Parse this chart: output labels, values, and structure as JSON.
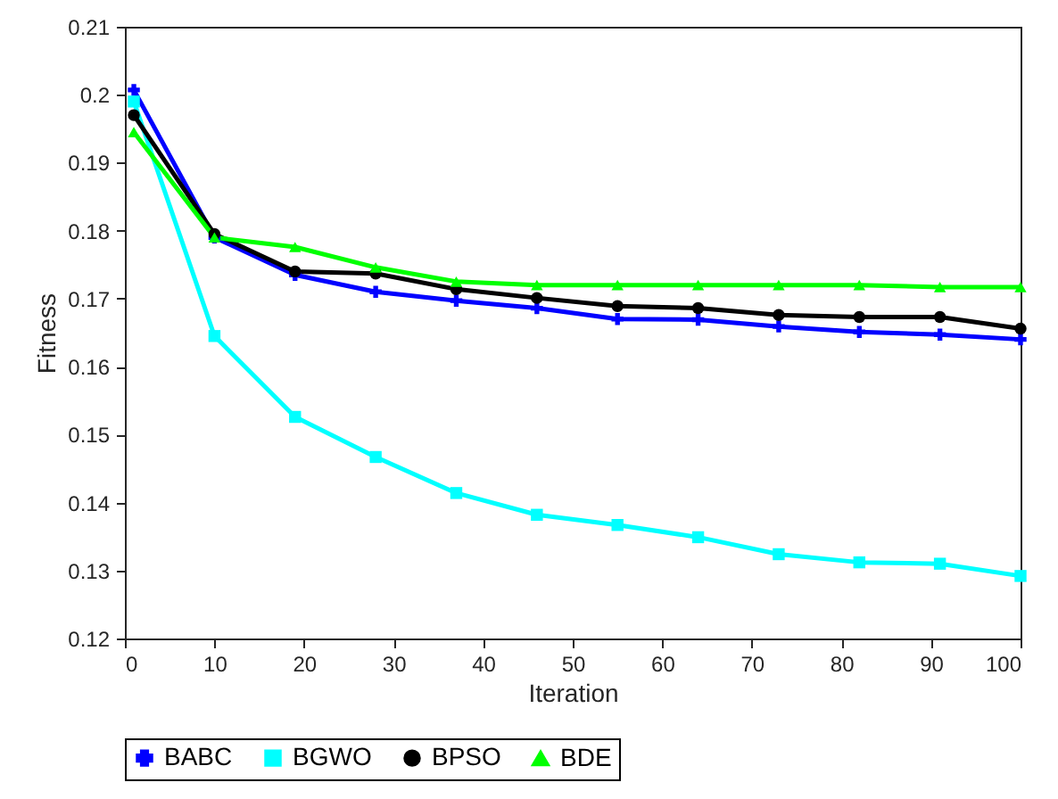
{
  "chart_data": {
    "type": "line",
    "xlabel": "Iteration",
    "ylabel": "Fitness",
    "x": [
      1,
      10,
      19,
      28,
      37,
      46,
      55,
      64,
      73,
      82,
      91,
      100
    ],
    "series": [
      {
        "name": "BABC",
        "color": "#0000ff",
        "marker": "cross",
        "values": [
          0.2007,
          0.179,
          0.1735,
          0.171,
          0.1697,
          0.1686,
          0.167,
          0.1669,
          0.1659,
          0.1651,
          0.1647,
          0.164
        ]
      },
      {
        "name": "BGWO",
        "color": "#00ffff",
        "marker": "square",
        "values": [
          0.199,
          0.1645,
          0.1526,
          0.1467,
          0.1414,
          0.1382,
          0.1367,
          0.1349,
          0.1324,
          0.1312,
          0.131,
          0.1292
        ]
      },
      {
        "name": "BPSO",
        "color": "#000000",
        "marker": "circle",
        "values": [
          0.197,
          0.1795,
          0.174,
          0.1737,
          0.1714,
          0.1701,
          0.1689,
          0.1686,
          0.1676,
          0.1673,
          0.1673,
          0.1656
        ]
      },
      {
        "name": "BDE",
        "color": "#00ff00",
        "marker": "triangle",
        "values": [
          0.1945,
          0.179,
          0.1776,
          0.1746,
          0.1725,
          0.172,
          0.172,
          0.172,
          0.172,
          0.172,
          0.1717,
          0.1717
        ]
      }
    ],
    "xlim": [
      0,
      100
    ],
    "xticks": [
      0,
      10,
      20,
      30,
      40,
      50,
      60,
      70,
      80,
      90,
      100
    ],
    "ylim": [
      0.12,
      0.21
    ],
    "yticks": [
      0.12,
      0.13,
      0.14,
      0.15,
      0.16,
      0.17,
      0.18,
      0.19,
      0.2,
      0.21
    ],
    "grid": false,
    "legend": "bottom",
    "line_style": "solid"
  }
}
